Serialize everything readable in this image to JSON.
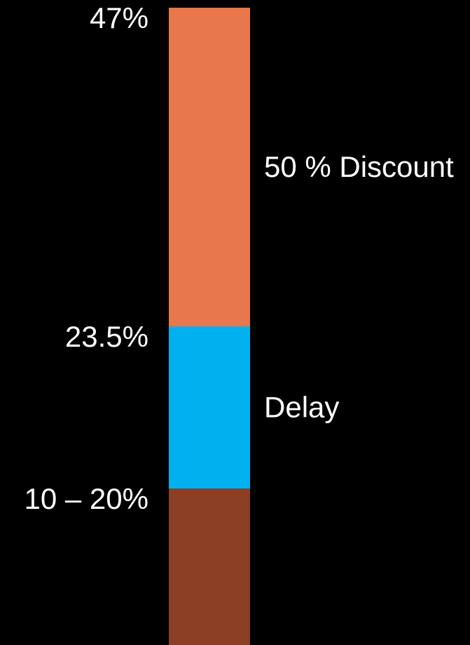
{
  "chart_data": {
    "type": "bar",
    "orientation": "vertical-stacked",
    "boundary_labels": [
      "47%",
      "23.5%",
      "10 – 20%"
    ],
    "segments": [
      {
        "label": "50 % Discount",
        "from": 23.5,
        "to": 47,
        "color": "#e8774c"
      },
      {
        "label": "Delay",
        "from": 13,
        "to": 23.5,
        "color": "#00b0ef"
      },
      {
        "label": "",
        "from": 0,
        "to": 13,
        "color": "#8b3f24"
      }
    ],
    "ylim": [
      0,
      47
    ],
    "grid": false,
    "legend": "none"
  },
  "colors": {
    "background": "#000000",
    "text": "#ffffff"
  }
}
